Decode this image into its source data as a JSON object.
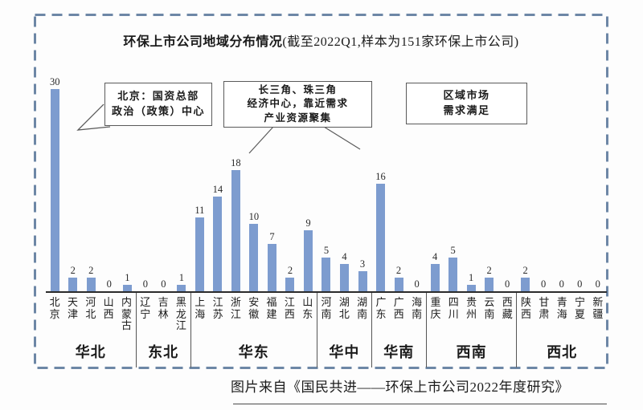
{
  "title": {
    "main": "环保上市公司地域分布情况",
    "sub": "(截至2022Q1,样本为151家环保上市公司)"
  },
  "annotations": {
    "beijing": {
      "line1": "北京：国资总部",
      "line2": "政治（政策）中心"
    },
    "delta": {
      "line1": "长三角、珠三角",
      "line2": "经济中心，靠近需求",
      "line3": "产业资源聚集"
    },
    "regional": {
      "line1": "区域市场",
      "line2": "需求满足"
    }
  },
  "caption": "图片来自《国民共进——环保上市公司2022年度研究》",
  "colors": {
    "bar": "#7d9ccf",
    "frame_dash": "#6d87a6",
    "axis": "#2b2b2b",
    "divider": "#555555",
    "annotation_border": "#5a5a5a",
    "text": "#1b1b1b"
  },
  "chart_data": {
    "type": "bar",
    "title": "环保上市公司地域分布情况(截至2022Q1,样本为151家环保上市公司)",
    "sample_total": 151,
    "as_of": "2022Q1",
    "ylim": [
      0,
      30
    ],
    "value_labels_shown": true,
    "grid": false,
    "legend": false,
    "categories": [
      "北京",
      "天津",
      "河北",
      "山西",
      "内蒙古",
      "辽宁",
      "吉林",
      "黑龙江",
      "上海",
      "江苏",
      "浙江",
      "安徽",
      "福建",
      "江西",
      "山东",
      "河南",
      "湖北",
      "湖南",
      "广东",
      "广西",
      "海南",
      "重庆",
      "四川",
      "贵州",
      "云南",
      "西藏",
      "陕西",
      "甘肃",
      "青海",
      "宁夏",
      "新疆"
    ],
    "values": [
      30,
      2,
      2,
      0,
      1,
      0,
      0,
      1,
      11,
      14,
      18,
      10,
      7,
      2,
      9,
      5,
      4,
      3,
      16,
      2,
      0,
      4,
      5,
      1,
      2,
      0,
      2,
      0,
      0,
      0,
      0
    ],
    "regions": [
      {
        "name": "华北",
        "provinces": [
          "北京",
          "天津",
          "河北",
          "山西",
          "内蒙古"
        ],
        "values": [
          30,
          2,
          2,
          0,
          1
        ]
      },
      {
        "name": "东北",
        "provinces": [
          "辽宁",
          "吉林",
          "黑龙江"
        ],
        "values": [
          0,
          0,
          1
        ]
      },
      {
        "name": "华东",
        "provinces": [
          "上海",
          "江苏",
          "浙江",
          "安徽",
          "福建",
          "江西",
          "山东"
        ],
        "values": [
          11,
          14,
          18,
          10,
          7,
          2,
          9
        ]
      },
      {
        "name": "华中",
        "provinces": [
          "河南",
          "湖北",
          "湖南"
        ],
        "values": [
          5,
          4,
          3
        ]
      },
      {
        "name": "华南",
        "provinces": [
          "广东",
          "广西",
          "海南"
        ],
        "values": [
          16,
          2,
          0
        ]
      },
      {
        "name": "西南",
        "provinces": [
          "重庆",
          "四川",
          "贵州",
          "云南",
          "西藏"
        ],
        "values": [
          4,
          5,
          1,
          2,
          0
        ]
      },
      {
        "name": "西北",
        "provinces": [
          "陕西",
          "甘肃",
          "青海",
          "宁夏",
          "新疆"
        ],
        "values": [
          2,
          0,
          0,
          0,
          0
        ]
      }
    ]
  }
}
